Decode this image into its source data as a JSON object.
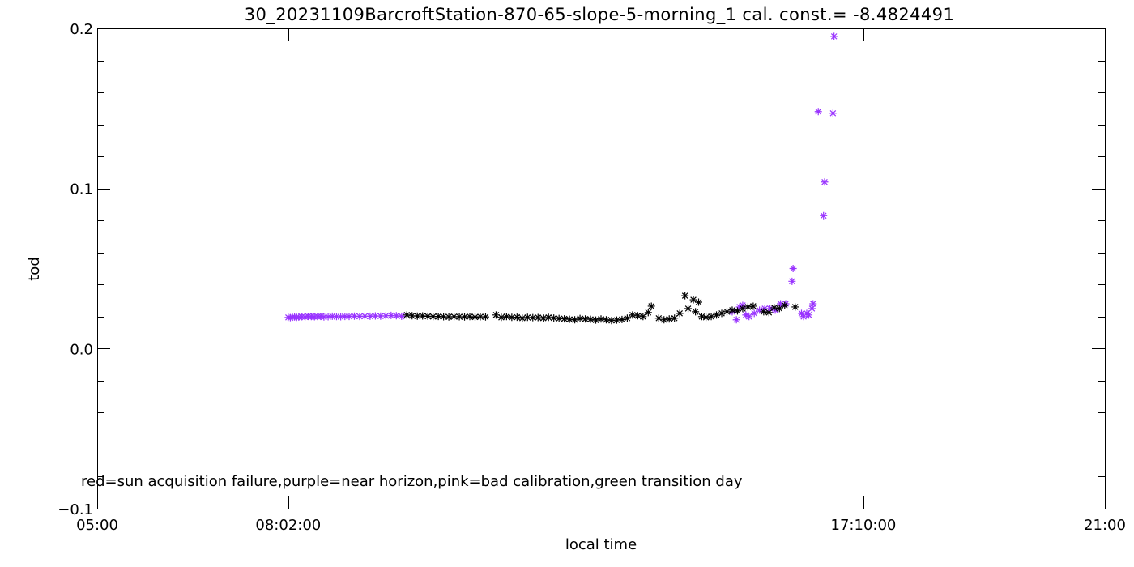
{
  "chart_data": {
    "type": "scatter",
    "title": "30_20231109BarcroftStation-870-65-slope-5-morning_1 cal. const.= -8.4824491",
    "xlabel": "local time",
    "ylabel": "tod",
    "xlim": [
      "05:00",
      "21:00"
    ],
    "ylim": [
      -0.1,
      0.2
    ],
    "x_tick_labels": [
      "05:00",
      "08:02:00",
      "17:10:00",
      "21:00"
    ],
    "y_tick_labels": [
      "-0.1",
      "0.0",
      "0.1",
      "0.2"
    ],
    "annotation": "red=sun acquisition failure,purple=near horizon,pink=bad calibration,green transition day",
    "reference_line": {
      "x": [
        "08:02",
        "17:10"
      ],
      "y": 0.03
    },
    "colors": {
      "normal": "#000000",
      "near_horizon": "#9933ff"
    },
    "series": [
      {
        "flag": "near horizon",
        "color": "#9933ff",
        "points": [
          [
            "08:02",
            0.0195
          ],
          [
            "08:04",
            0.0193
          ],
          [
            "08:06",
            0.0196
          ],
          [
            "08:08",
            0.0198
          ],
          [
            "08:10",
            0.0195
          ],
          [
            "08:12",
            0.0197
          ],
          [
            "08:15",
            0.0199
          ],
          [
            "08:18",
            0.0198
          ],
          [
            "08:21",
            0.0201
          ],
          [
            "08:24",
            0.02
          ],
          [
            "08:27",
            0.0199
          ],
          [
            "08:30",
            0.02
          ],
          [
            "08:33",
            0.0201
          ],
          [
            "08:36",
            0.0198
          ],
          [
            "08:40",
            0.0199
          ],
          [
            "08:44",
            0.0202
          ],
          [
            "08:48",
            0.02
          ],
          [
            "08:52",
            0.0199
          ],
          [
            "08:56",
            0.0201
          ],
          [
            "09:00",
            0.0201
          ],
          [
            "09:05",
            0.0203
          ],
          [
            "09:10",
            0.0201
          ],
          [
            "09:15",
            0.0203
          ],
          [
            "09:20",
            0.0202
          ],
          [
            "09:25",
            0.0204
          ],
          [
            "09:30",
            0.0203
          ],
          [
            "09:35",
            0.0205
          ],
          [
            "09:40",
            0.0207
          ],
          [
            "09:45",
            0.0205
          ],
          [
            "09:50",
            0.0202
          ],
          [
            "15:05",
            0.023
          ],
          [
            "15:09",
            0.018
          ],
          [
            "15:12",
            0.026
          ],
          [
            "15:15",
            0.027
          ],
          [
            "15:18",
            0.021
          ],
          [
            "15:21",
            0.02
          ],
          [
            "15:26",
            0.022
          ],
          [
            "15:31",
            0.024
          ],
          [
            "15:36",
            0.025
          ],
          [
            "15:41",
            0.025
          ],
          [
            "15:46",
            0.024
          ],
          [
            "15:51",
            0.028
          ],
          [
            "15:56",
            0.028
          ],
          [
            "16:02",
            0.042
          ],
          [
            "16:03",
            0.05
          ],
          [
            "16:11",
            0.022
          ],
          [
            "16:13",
            0.02
          ],
          [
            "16:16",
            0.022
          ],
          [
            "16:18",
            0.021
          ],
          [
            "16:21",
            0.025
          ],
          [
            "16:22",
            0.028
          ],
          [
            "16:27",
            0.148
          ],
          [
            "16:32",
            0.083
          ],
          [
            "16:33",
            0.104
          ],
          [
            "16:41",
            0.147
          ],
          [
            "16:42",
            0.195
          ]
        ]
      },
      {
        "flag": "normal",
        "color": "#000000",
        "points": [
          [
            "09:55",
            0.021
          ],
          [
            "10:00",
            0.0205
          ],
          [
            "10:05",
            0.0203
          ],
          [
            "10:10",
            0.0204
          ],
          [
            "10:15",
            0.0202
          ],
          [
            "10:20",
            0.02
          ],
          [
            "10:25",
            0.0201
          ],
          [
            "10:30",
            0.0199
          ],
          [
            "10:35",
            0.0198
          ],
          [
            "10:40",
            0.02
          ],
          [
            "10:45",
            0.0199
          ],
          [
            "10:50",
            0.0198
          ],
          [
            "10:55",
            0.02
          ],
          [
            "11:00",
            0.0197
          ],
          [
            "11:05",
            0.0199
          ],
          [
            "11:10",
            0.0198
          ],
          [
            "11:20",
            0.021
          ],
          [
            "11:25",
            0.0195
          ],
          [
            "11:30",
            0.02
          ],
          [
            "11:35",
            0.0195
          ],
          [
            "11:40",
            0.0196
          ],
          [
            "11:45",
            0.019
          ],
          [
            "11:50",
            0.0195
          ],
          [
            "11:55",
            0.0193
          ],
          [
            "12:00",
            0.0194
          ],
          [
            "12:05",
            0.019
          ],
          [
            "12:10",
            0.0195
          ],
          [
            "12:15",
            0.0191
          ],
          [
            "12:20",
            0.0188
          ],
          [
            "12:25",
            0.0186
          ],
          [
            "12:30",
            0.0183
          ],
          [
            "12:35",
            0.018
          ],
          [
            "12:40",
            0.0188
          ],
          [
            "12:45",
            0.0185
          ],
          [
            "12:50",
            0.0183
          ],
          [
            "12:55",
            0.0178
          ],
          [
            "13:00",
            0.0185
          ],
          [
            "13:05",
            0.018
          ],
          [
            "13:10",
            0.0175
          ],
          [
            "13:15",
            0.0178
          ],
          [
            "13:20",
            0.0182
          ],
          [
            "13:25",
            0.019
          ],
          [
            "13:30",
            0.021
          ],
          [
            "13:35",
            0.0205
          ],
          [
            "13:40",
            0.02
          ],
          [
            "13:45",
            0.0225
          ],
          [
            "13:48",
            0.0265
          ],
          [
            "13:55",
            0.019
          ],
          [
            "14:00",
            0.018
          ],
          [
            "14:05",
            0.0185
          ],
          [
            "14:10",
            0.019
          ],
          [
            "14:15",
            0.022
          ],
          [
            "14:20",
            0.033
          ],
          [
            "14:23",
            0.025
          ],
          [
            "14:28",
            0.0305
          ],
          [
            "14:30",
            0.023
          ],
          [
            "14:33",
            0.029
          ],
          [
            "14:36",
            0.02
          ],
          [
            "14:40",
            0.0195
          ],
          [
            "14:45",
            0.02
          ],
          [
            "14:50",
            0.021
          ],
          [
            "14:55",
            0.022
          ],
          [
            "15:00",
            0.023
          ],
          [
            "15:05",
            0.024
          ],
          [
            "15:10",
            0.0235
          ],
          [
            "15:15",
            0.025
          ],
          [
            "15:20",
            0.026
          ],
          [
            "15:25",
            0.0265
          ],
          [
            "15:35",
            0.023
          ],
          [
            "15:40",
            0.0225
          ],
          [
            "15:45",
            0.0255
          ],
          [
            "15:50",
            0.025
          ],
          [
            "15:55",
            0.027
          ],
          [
            "16:05",
            0.026
          ]
        ]
      }
    ]
  }
}
